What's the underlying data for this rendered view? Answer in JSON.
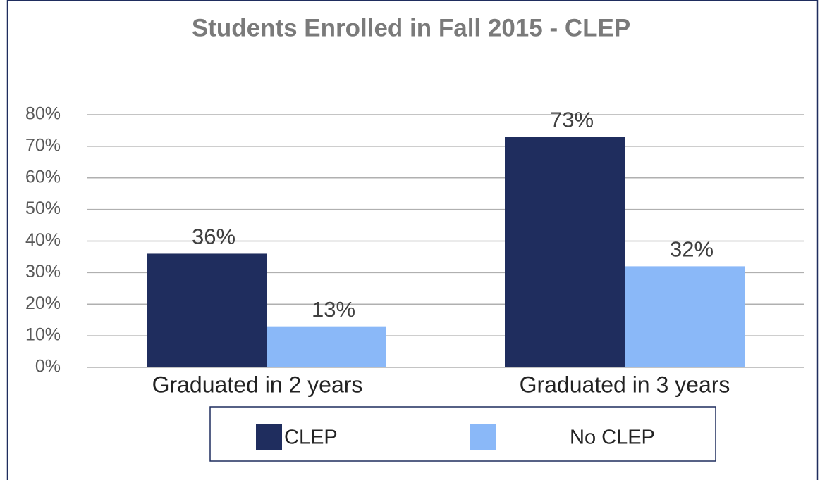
{
  "chart_data": {
    "type": "bar",
    "title": "Students Enrolled in Fall 2015  - CLEP",
    "categories": [
      "Graduated in 2 years",
      "Graduated in 3 years"
    ],
    "series": [
      {
        "name": "CLEP",
        "color": "#1f2d5e",
        "values": [
          36,
          73
        ],
        "value_labels": [
          "36%",
          "73%"
        ]
      },
      {
        "name": "No CLEP",
        "color": "#8ab8f8",
        "values": [
          13,
          32
        ],
        "value_labels": [
          "13%",
          "32%"
        ]
      }
    ],
    "ylim": [
      0,
      80
    ],
    "yticks": [
      {
        "value": 0,
        "label": "0%"
      },
      {
        "value": 10,
        "label": "10%"
      },
      {
        "value": 20,
        "label": "20%"
      },
      {
        "value": 30,
        "label": "30%"
      },
      {
        "value": 40,
        "label": "40%"
      },
      {
        "value": 50,
        "label": "50%"
      },
      {
        "value": 60,
        "label": "60%"
      },
      {
        "value": 70,
        "label": "70%"
      },
      {
        "value": 80,
        "label": "80%"
      }
    ],
    "grid": true,
    "legend": "bottom"
  }
}
